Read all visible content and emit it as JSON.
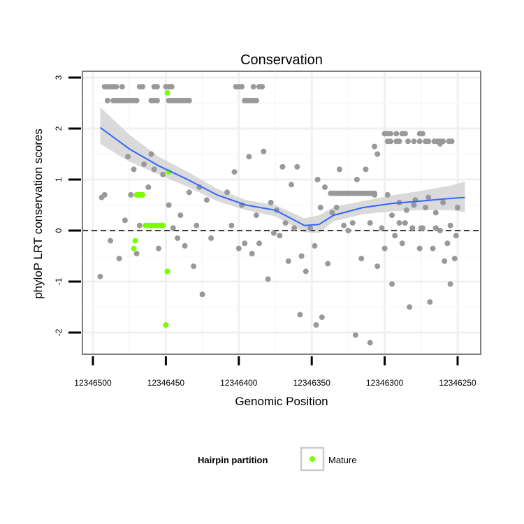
{
  "chart_data": {
    "type": "scatter",
    "title": "Conservation",
    "xlabel": "Genomic Position",
    "ylabel": "phyloP LRT conservation scores",
    "x_axis_reversed": true,
    "xlim": [
      12346250,
      12346500
    ],
    "ylim": [
      -2.4,
      3.0
    ],
    "x_ticks": [
      12346500,
      12346450,
      12346400,
      12346350,
      12346300,
      12346250
    ],
    "x_tick_labels": [
      "12346500",
      "12346450",
      "12346400",
      "12346350",
      "12346300",
      "12346250"
    ],
    "y_ticks": [
      -2,
      -1,
      0,
      1,
      2,
      3
    ],
    "y_tick_labels": [
      "-2",
      "-1",
      "0",
      "1",
      "2",
      "3"
    ],
    "reference_line": {
      "y": 0,
      "style": "dashed",
      "color": "#000000"
    },
    "colors": {
      "other_points": "#999999",
      "mature_points": "#7cfc00",
      "smooth_line": "#3366ff",
      "confidence_band": "#d3d3d3",
      "grid": "#f0f0f0",
      "panel_border": "#7f7f7f"
    },
    "legend": {
      "title": "Hairpin partition",
      "entries": [
        {
          "label": "Mature",
          "color": "#7cfc00"
        }
      ],
      "position": "bottom"
    },
    "smooth": {
      "x": [
        12346495,
        12346475,
        12346455,
        12346435,
        12346415,
        12346395,
        12346375,
        12346355,
        12346345,
        12346335,
        12346315,
        12346295,
        12346275,
        12346255,
        12346245
      ],
      "y": [
        2.02,
        1.6,
        1.27,
        1.0,
        0.7,
        0.5,
        0.4,
        0.1,
        0.12,
        0.3,
        0.45,
        0.53,
        0.58,
        0.63,
        0.65
      ],
      "lower": [
        1.7,
        1.35,
        1.1,
        0.86,
        0.58,
        0.4,
        0.28,
        -0.03,
        -0.05,
        0.18,
        0.32,
        0.38,
        0.4,
        0.4,
        0.36
      ],
      "upper": [
        2.42,
        1.88,
        1.45,
        1.15,
        0.82,
        0.6,
        0.5,
        0.24,
        0.3,
        0.46,
        0.58,
        0.69,
        0.78,
        0.88,
        0.96
      ]
    },
    "series": [
      {
        "name": "Other",
        "color": "#999999",
        "points": [
          [
            12346492,
            2.82
          ],
          [
            12346490,
            2.82
          ],
          [
            12346488,
            2.82
          ],
          [
            12346486,
            2.82
          ],
          [
            12346484,
            2.82
          ],
          [
            12346480,
            2.82
          ],
          [
            12346468,
            2.82
          ],
          [
            12346466,
            2.82
          ],
          [
            12346458,
            2.82
          ],
          [
            12346456,
            2.82
          ],
          [
            12346450,
            2.82
          ],
          [
            12346448,
            2.82
          ],
          [
            12346446,
            2.82
          ],
          [
            12346402,
            2.82
          ],
          [
            12346400,
            2.82
          ],
          [
            12346398,
            2.82
          ],
          [
            12346390,
            2.82
          ],
          [
            12346386,
            2.82
          ],
          [
            12346384,
            2.82
          ],
          [
            12346490,
            2.55
          ],
          [
            12346486,
            2.55
          ],
          [
            12346484,
            2.55
          ],
          [
            12346482,
            2.55
          ],
          [
            12346480,
            2.55
          ],
          [
            12346478,
            2.55
          ],
          [
            12346476,
            2.55
          ],
          [
            12346474,
            2.55
          ],
          [
            12346472,
            2.55
          ],
          [
            12346470,
            2.55
          ],
          [
            12346460,
            2.55
          ],
          [
            12346458,
            2.55
          ],
          [
            12346456,
            2.55
          ],
          [
            12346448,
            2.55
          ],
          [
            12346446,
            2.55
          ],
          [
            12346444,
            2.55
          ],
          [
            12346442,
            2.55
          ],
          [
            12346440,
            2.55
          ],
          [
            12346438,
            2.55
          ],
          [
            12346436,
            2.55
          ],
          [
            12346434,
            2.55
          ],
          [
            12346396,
            2.55
          ],
          [
            12346394,
            2.55
          ],
          [
            12346392,
            2.55
          ],
          [
            12346390,
            2.55
          ],
          [
            12346388,
            2.55
          ],
          [
            12346300,
            1.9
          ],
          [
            12346298,
            1.9
          ],
          [
            12346296,
            1.9
          ],
          [
            12346292,
            1.9
          ],
          [
            12346288,
            1.9
          ],
          [
            12346286,
            1.9
          ],
          [
            12346276,
            1.9
          ],
          [
            12346274,
            1.9
          ],
          [
            12346298,
            1.75
          ],
          [
            12346296,
            1.75
          ],
          [
            12346292,
            1.75
          ],
          [
            12346290,
            1.75
          ],
          [
            12346284,
            1.75
          ],
          [
            12346280,
            1.75
          ],
          [
            12346276,
            1.75
          ],
          [
            12346272,
            1.75
          ],
          [
            12346270,
            1.75
          ],
          [
            12346266,
            1.75
          ],
          [
            12346264,
            1.75
          ],
          [
            12346262,
            1.75
          ],
          [
            12346260,
            1.75
          ],
          [
            12346256,
            1.75
          ],
          [
            12346254,
            1.75
          ],
          [
            12346307,
            1.65
          ],
          [
            12346305,
            1.5
          ],
          [
            12346310,
            -2.2
          ],
          [
            12346320,
            -2.05
          ],
          [
            12346343,
            -1.7
          ],
          [
            12346347,
            -1.85
          ],
          [
            12346358,
            -1.65
          ],
          [
            12346337,
            0.73
          ],
          [
            12346335,
            0.73
          ],
          [
            12346333,
            0.73
          ],
          [
            12346331,
            0.73
          ],
          [
            12346329,
            0.73
          ],
          [
            12346327,
            0.73
          ],
          [
            12346325,
            0.73
          ],
          [
            12346323,
            0.73
          ],
          [
            12346321,
            0.73
          ],
          [
            12346319,
            0.73
          ],
          [
            12346317,
            0.73
          ],
          [
            12346315,
            0.73
          ],
          [
            12346313,
            0.73
          ],
          [
            12346311,
            0.73
          ],
          [
            12346309,
            0.73
          ],
          [
            12346307,
            0.73
          ],
          [
            12346295,
            0.3
          ],
          [
            12346290,
            0.15
          ],
          [
            12346285,
            0.4
          ],
          [
            12346280,
            0.5
          ],
          [
            12346275,
            0.05
          ],
          [
            12346270,
            0.65
          ],
          [
            12346265,
            0.35
          ],
          [
            12346260,
            0.55
          ],
          [
            12346255,
            0.1
          ],
          [
            12346250,
            0.45
          ],
          [
            12346262,
            1.7
          ],
          [
            12346495,
            -0.9
          ],
          [
            12346494,
            0.65
          ],
          [
            12346492,
            0.7
          ],
          [
            12346488,
            -0.2
          ],
          [
            12346482,
            -0.55
          ],
          [
            12346478,
            0.2
          ],
          [
            12346476,
            1.45
          ],
          [
            12346474,
            0.7
          ],
          [
            12346472,
            1.2
          ],
          [
            12346470,
            -0.45
          ],
          [
            12346468,
            0.1
          ],
          [
            12346465,
            1.3
          ],
          [
            12346462,
            0.85
          ],
          [
            12346460,
            1.5
          ],
          [
            12346458,
            1.2
          ],
          [
            12346455,
            -0.35
          ],
          [
            12346452,
            1.1
          ],
          [
            12346448,
            0.5
          ],
          [
            12346445,
            0.05
          ],
          [
            12346442,
            -0.15
          ],
          [
            12346440,
            0.3
          ],
          [
            12346437,
            -0.3
          ],
          [
            12346434,
            0.75
          ],
          [
            12346431,
            -0.7
          ],
          [
            12346429,
            0.1
          ],
          [
            12346427,
            0.85
          ],
          [
            12346425,
            -1.25
          ],
          [
            12346422,
            0.6
          ],
          [
            12346419,
            -0.15
          ],
          [
            12346408,
            0.75
          ],
          [
            12346405,
            0.1
          ],
          [
            12346403,
            1.15
          ],
          [
            12346400,
            -0.35
          ],
          [
            12346398,
            0.5
          ],
          [
            12346396,
            -0.25
          ],
          [
            12346393,
            1.45
          ],
          [
            12346391,
            -0.45
          ],
          [
            12346388,
            0.3
          ],
          [
            12346386,
            -0.25
          ],
          [
            12346383,
            1.55
          ],
          [
            12346380,
            -0.95
          ],
          [
            12346378,
            0.55
          ],
          [
            12346376,
            -0.05
          ],
          [
            12346374,
            0.4
          ],
          [
            12346372,
            -0.1
          ],
          [
            12346370,
            1.25
          ],
          [
            12346368,
            0.15
          ],
          [
            12346366,
            -0.6
          ],
          [
            12346364,
            0.9
          ],
          [
            12346362,
            0.05
          ],
          [
            12346360,
            1.25
          ],
          [
            12346357,
            -0.5
          ],
          [
            12346354,
            -0.8
          ],
          [
            12346351,
            0.05
          ],
          [
            12346348,
            -0.3
          ],
          [
            12346346,
            1.0
          ],
          [
            12346344,
            0.45
          ],
          [
            12346341,
            0.85
          ],
          [
            12346339,
            -0.65
          ],
          [
            12346336,
            0.35
          ],
          [
            12346333,
            0.45
          ],
          [
            12346331,
            1.2
          ],
          [
            12346328,
            0.1
          ],
          [
            12346325,
            0.0
          ],
          [
            12346322,
            0.15
          ],
          [
            12346319,
            1.0
          ],
          [
            12346316,
            -0.55
          ],
          [
            12346313,
            1.2
          ],
          [
            12346310,
            0.15
          ],
          [
            12346307,
            0.7
          ],
          [
            12346305,
            -0.7
          ],
          [
            12346302,
            0.05
          ],
          [
            12346300,
            -0.35
          ],
          [
            12346298,
            0.7
          ],
          [
            12346295,
            -1.05
          ],
          [
            12346293,
            -0.1
          ],
          [
            12346290,
            0.55
          ],
          [
            12346288,
            -0.25
          ],
          [
            12346286,
            0.15
          ],
          [
            12346283,
            -1.5
          ],
          [
            12346281,
            0.05
          ],
          [
            12346279,
            0.6
          ],
          [
            12346276,
            -0.35
          ],
          [
            12346274,
            0.05
          ],
          [
            12346272,
            0.45
          ],
          [
            12346269,
            -1.4
          ],
          [
            12346267,
            -0.35
          ],
          [
            12346265,
            0.05
          ],
          [
            12346262,
            0.0
          ],
          [
            12346259,
            -0.6
          ],
          [
            12346257,
            -0.25
          ],
          [
            12346255,
            -1.05
          ],
          [
            12346252,
            -0.55
          ],
          [
            12346251,
            -0.1
          ]
        ]
      },
      {
        "name": "Mature",
        "color": "#7cfc00",
        "points": [
          [
            12346471,
            -0.2
          ],
          [
            12346472,
            -0.35
          ],
          [
            12346470,
            0.7
          ],
          [
            12346469,
            0.7
          ],
          [
            12346468,
            0.7
          ],
          [
            12346467,
            0.7
          ],
          [
            12346466,
            0.7
          ],
          [
            12346464,
            0.1
          ],
          [
            12346462,
            0.1
          ],
          [
            12346460,
            0.1
          ],
          [
            12346458,
            0.1
          ],
          [
            12346456,
            0.1
          ],
          [
            12346454,
            0.1
          ],
          [
            12346452,
            0.1
          ],
          [
            12346449,
            2.7
          ],
          [
            12346448,
            1.15
          ],
          [
            12346449,
            -0.8
          ],
          [
            12346450,
            -1.85
          ]
        ]
      }
    ]
  }
}
